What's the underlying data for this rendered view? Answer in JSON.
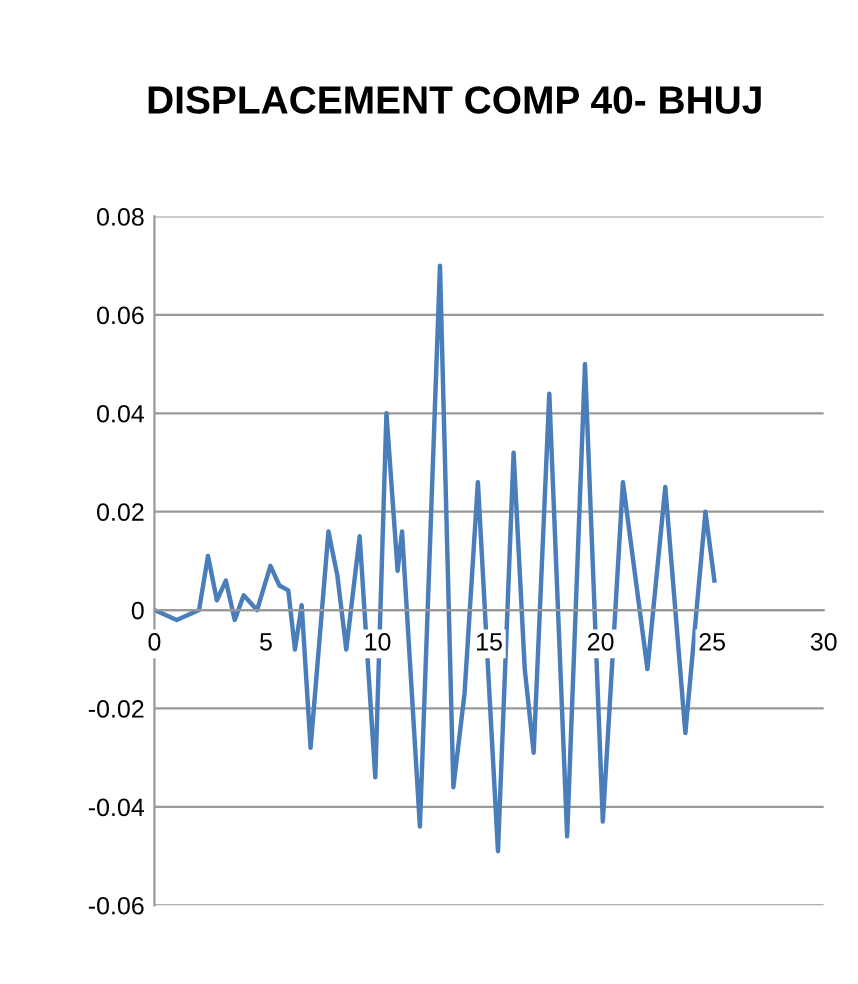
{
  "chart_data": {
    "type": "line",
    "title": "DISPLACEMENT COMP 40- BHUJ",
    "x": [
      0,
      0.5,
      1,
      1.5,
      2,
      2.4,
      2.8,
      3.2,
      3.6,
      4,
      4.6,
      5.2,
      5.6,
      6.0,
      6.3,
      6.6,
      7.0,
      7.8,
      8.2,
      8.6,
      9.2,
      9.9,
      10.4,
      10.9,
      11.1,
      11.9,
      12.8,
      13.4,
      13.9,
      14.5,
      15.4,
      16.1,
      16.6,
      17.0,
      17.7,
      18.5,
      19.3,
      20.1,
      21.0,
      22.1,
      22.9,
      23.8,
      24.7,
      25.1
    ],
    "series": [
      {
        "color": "#4a7ebb",
        "values": [
          0,
          -0.001,
          -0.002,
          -0.001,
          0,
          0.011,
          0.002,
          0.006,
          -0.002,
          0.003,
          0,
          0.009,
          0.005,
          0.004,
          -0.008,
          0.001,
          -0.028,
          0.016,
          0.007,
          -0.008,
          0.015,
          -0.034,
          0.04,
          0.008,
          0.016,
          -0.044,
          0.07,
          -0.036,
          -0.017,
          0.026,
          -0.049,
          0.032,
          -0.012,
          -0.029,
          0.044,
          -0.046,
          0.05,
          -0.043,
          0.026,
          -0.012,
          0.025,
          -0.025,
          0.02,
          0.006
        ]
      }
    ],
    "xlim": [
      0,
      30
    ],
    "xticks": [
      0,
      5,
      10,
      15,
      20,
      25,
      30
    ],
    "ylim": [
      -0.06,
      0.08
    ],
    "yticks": [
      -0.06,
      -0.04,
      -0.02,
      0,
      0.02,
      0.04,
      0.06,
      0.08
    ],
    "grid": "y",
    "line_style": "solid"
  }
}
